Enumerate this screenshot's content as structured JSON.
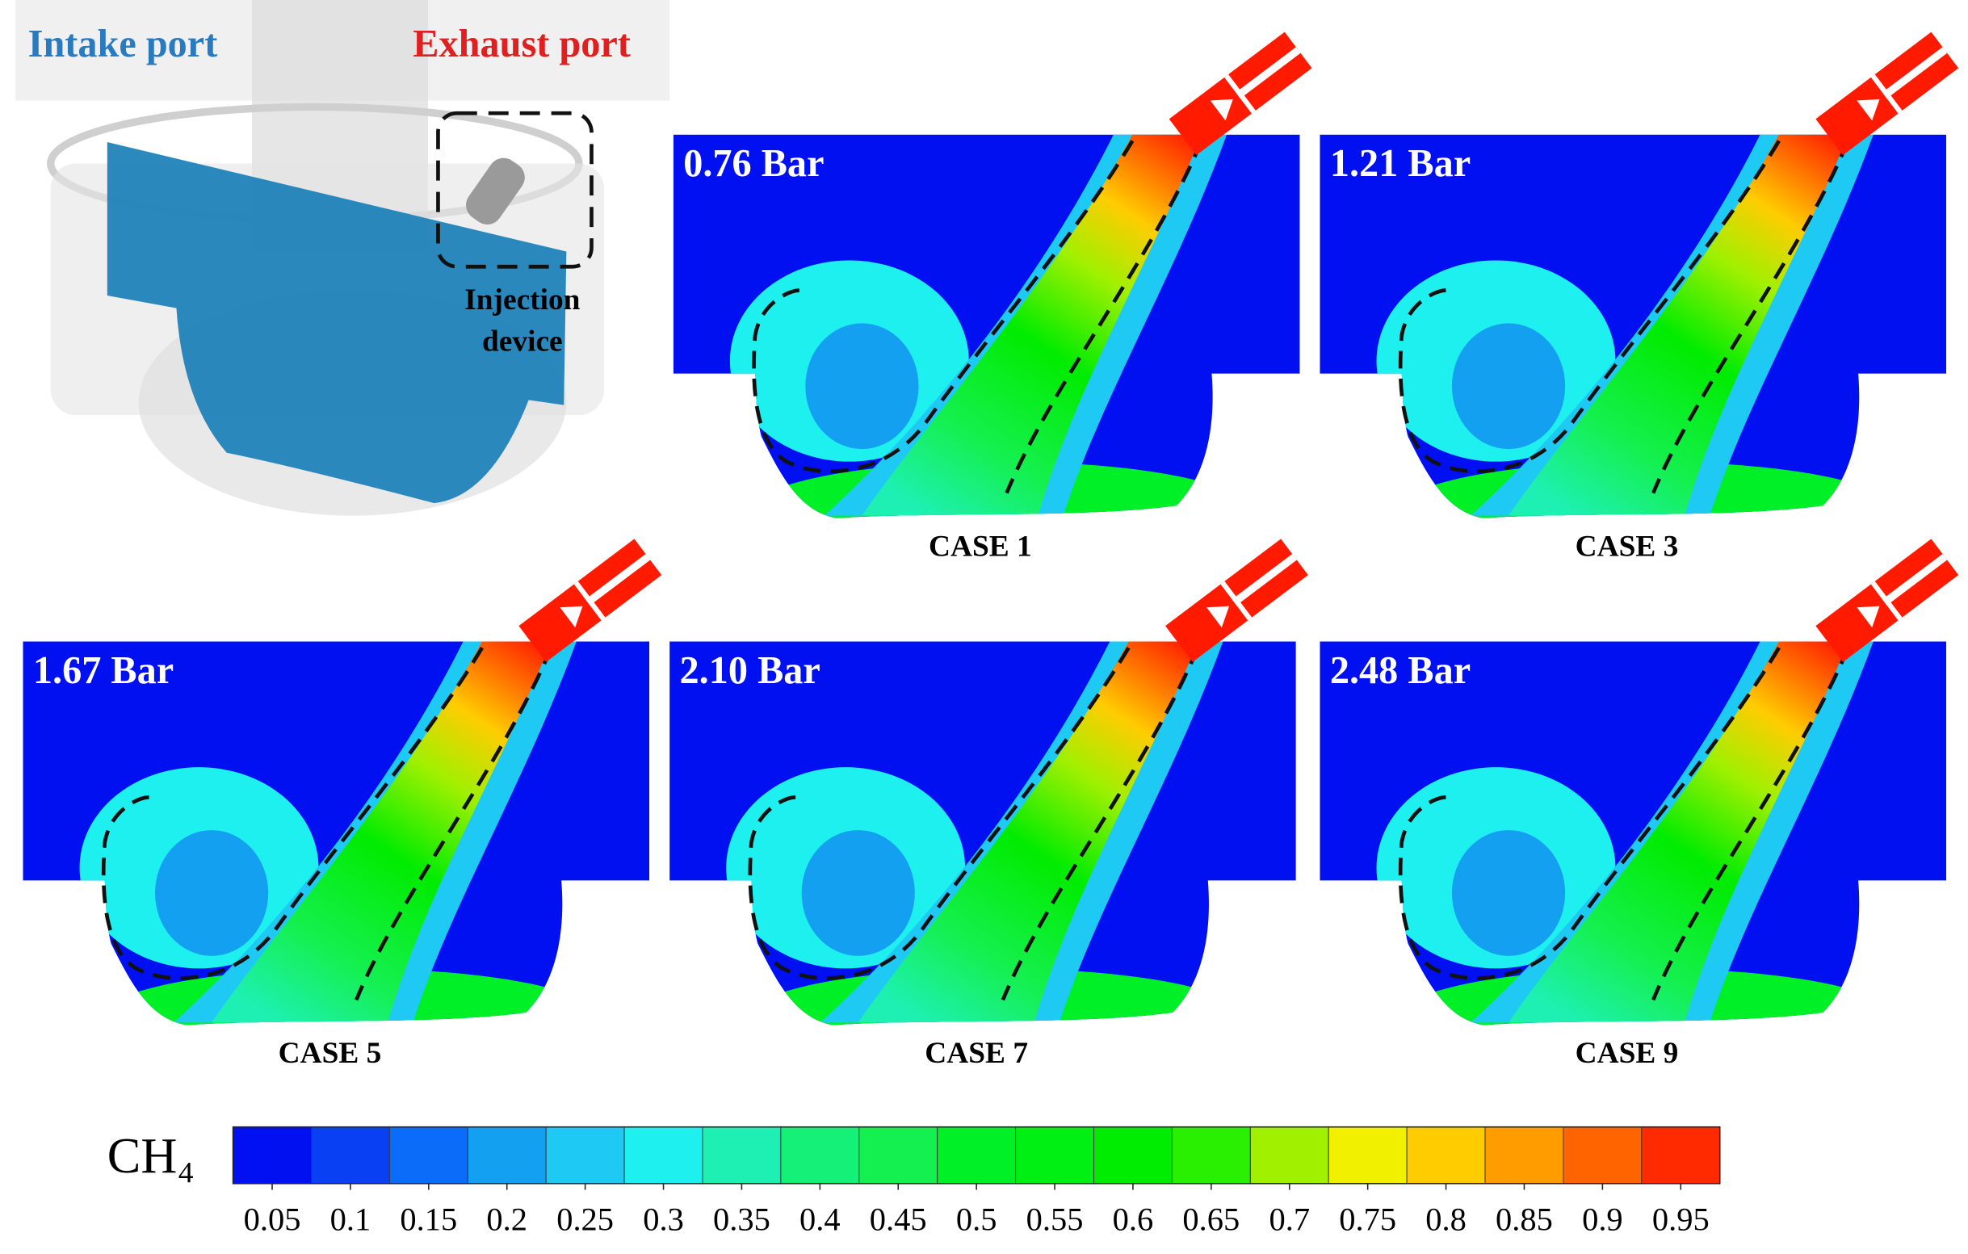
{
  "labels": {
    "intake_port": "Intake port",
    "exhaust_port": "Exhaust port",
    "injection_device": [
      "Injection",
      "device"
    ]
  },
  "panels": [
    {
      "pressure": "0.76 Bar",
      "case": "CASE 1"
    },
    {
      "pressure": "1.21 Bar",
      "case": "CASE 3"
    },
    {
      "pressure": "1.67 Bar",
      "case": "CASE 5"
    },
    {
      "pressure": "2.10 Bar",
      "case": "CASE 7"
    },
    {
      "pressure": "2.48 Bar",
      "case": "CASE 9"
    }
  ],
  "colorbar": {
    "label": "CH₄",
    "ticks": [
      0.05,
      0.1,
      0.15,
      0.2,
      0.25,
      0.3,
      0.35,
      0.4,
      0.45,
      0.5,
      0.55,
      0.6,
      0.65,
      0.7,
      0.75,
      0.8,
      0.85,
      0.9,
      0.95
    ],
    "colors": [
      "#0010f0",
      "#0a40f4",
      "#0a6cf8",
      "#14a0f0",
      "#1ecaf4",
      "#1ef0f0",
      "#1ef0b4",
      "#14f078",
      "#14f050",
      "#00f028",
      "#00f014",
      "#00ec00",
      "#28f000",
      "#a0f000",
      "#f0f000",
      "#ffcc00",
      "#ff9c00",
      "#ff6400",
      "#ff2a00"
    ]
  }
}
